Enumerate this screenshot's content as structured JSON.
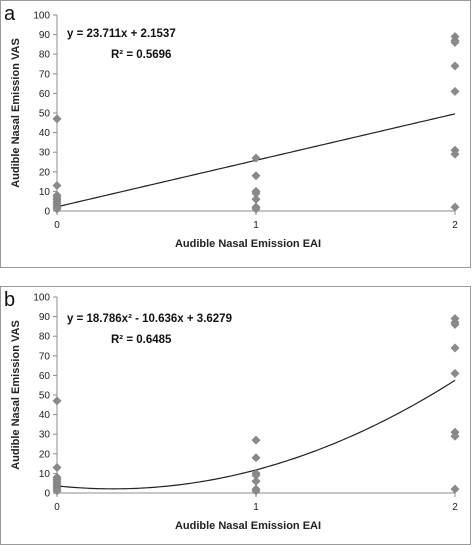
{
  "chart_data": [
    {
      "type": "scatter",
      "panel_label": "a",
      "xlabel": "Audible Nasal Emission EAI",
      "ylabel": "Audible Nasal Emission VAS",
      "xlim": [
        0,
        2
      ],
      "ylim": [
        0,
        100
      ],
      "x_ticks": [
        "0",
        "1",
        "2"
      ],
      "y_ticks": [
        "0",
        "10",
        "20",
        "30",
        "40",
        "50",
        "60",
        "70",
        "80",
        "90",
        "100"
      ],
      "grid": false,
      "points": [
        [
          0,
          47
        ],
        [
          0,
          13
        ],
        [
          0,
          8
        ],
        [
          0,
          7
        ],
        [
          0,
          6
        ],
        [
          0,
          5
        ],
        [
          0,
          4
        ],
        [
          0,
          3
        ],
        [
          0,
          2
        ],
        [
          0,
          1
        ],
        [
          1,
          27
        ],
        [
          1,
          18
        ],
        [
          1,
          10
        ],
        [
          1,
          9
        ],
        [
          1,
          6
        ],
        [
          1,
          2
        ],
        [
          1,
          1
        ],
        [
          2,
          89
        ],
        [
          2,
          87
        ],
        [
          2,
          86
        ],
        [
          2,
          74
        ],
        [
          2,
          61
        ],
        [
          2,
          31
        ],
        [
          2,
          29
        ],
        [
          2,
          2
        ]
      ],
      "trendline": {
        "kind": "linear",
        "coefficients": [
          23.711,
          2.1537
        ]
      },
      "equation": "y = 23.711x + 2.1537",
      "r_squared": "R² = 0.5696",
      "marker_color": "#8a8a8a",
      "line_color": "#222222"
    },
    {
      "type": "scatter",
      "panel_label": "b",
      "xlabel": "Audible Nasal Emission EAI",
      "ylabel": "Audible Nasal Emission VAS",
      "xlim": [
        0,
        2
      ],
      "ylim": [
        0,
        100
      ],
      "x_ticks": [
        "0",
        "1",
        "2"
      ],
      "y_ticks": [
        "0",
        "10",
        "20",
        "30",
        "40",
        "50",
        "60",
        "70",
        "80",
        "90",
        "100"
      ],
      "grid": false,
      "points": [
        [
          0,
          47
        ],
        [
          0,
          13
        ],
        [
          0,
          8
        ],
        [
          0,
          7
        ],
        [
          0,
          6
        ],
        [
          0,
          5
        ],
        [
          0,
          4
        ],
        [
          0,
          3
        ],
        [
          0,
          2
        ],
        [
          0,
          1
        ],
        [
          1,
          27
        ],
        [
          1,
          18
        ],
        [
          1,
          10
        ],
        [
          1,
          9
        ],
        [
          1,
          6
        ],
        [
          1,
          2
        ],
        [
          1,
          1
        ],
        [
          2,
          89
        ],
        [
          2,
          87
        ],
        [
          2,
          86
        ],
        [
          2,
          74
        ],
        [
          2,
          61
        ],
        [
          2,
          31
        ],
        [
          2,
          29
        ],
        [
          2,
          2
        ]
      ],
      "trendline": {
        "kind": "quadratic",
        "coefficients": [
          18.786,
          -10.636,
          3.6279
        ]
      },
      "equation": "y = 18.786x² - 10.636x + 3.6279",
      "r_squared": "R² = 0.6485",
      "marker_color": "#8a8a8a",
      "line_color": "#222222"
    }
  ]
}
